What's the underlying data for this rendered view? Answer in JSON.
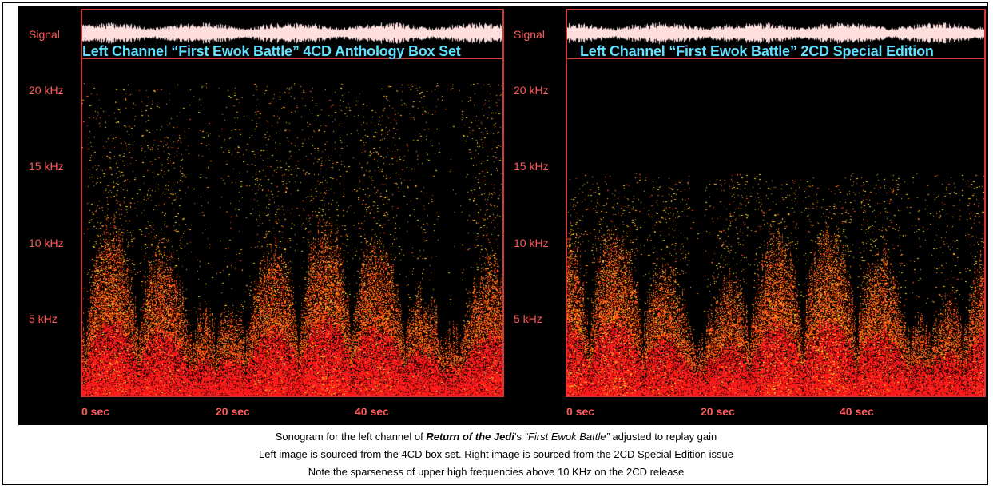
{
  "chart_data": [
    {
      "type": "heatmap",
      "title": "Left Channel “First Ewok Battle” 4CD Anthology Box Set",
      "signal_label": "Signal",
      "ylabel": "",
      "xlabel": "",
      "y_ticks": [
        "20 kHz",
        "15 kHz",
        "10 kHz",
        "5 kHz"
      ],
      "y_tick_values": [
        20000,
        15000,
        10000,
        5000
      ],
      "ylim": [
        0,
        22050
      ],
      "x_ticks": [
        "0 sec",
        "20 sec",
        "40 sec"
      ],
      "x_tick_values": [
        0,
        20,
        40
      ],
      "xlim": [
        0,
        60
      ],
      "colors": {
        "low": "#ff1a1a",
        "mid": "#ff8a1a",
        "high": "#ffd21a",
        "frame": "#d23a3a",
        "title": "#5fe0ff"
      }
    },
    {
      "type": "heatmap",
      "title": "Left Channel “First Ewok Battle” 2CD Special Edition",
      "signal_label": "Signal",
      "ylabel": "",
      "xlabel": "",
      "y_ticks": [
        "20 kHz",
        "15 kHz",
        "10 kHz",
        "5 kHz"
      ],
      "y_tick_values": [
        20000,
        15000,
        10000,
        5000
      ],
      "ylim": [
        0,
        22050
      ],
      "x_ticks": [
        "0 sec",
        "20 sec",
        "40 sec"
      ],
      "x_tick_values": [
        0,
        20,
        40
      ],
      "xlim": [
        0,
        60
      ],
      "colors": {
        "low": "#ff1a1a",
        "mid": "#ff8a1a",
        "high": "#ffd21a",
        "frame": "#d23a3a",
        "title": "#5fe0ff"
      }
    }
  ],
  "caption": {
    "line1_prefix": "Sonogram for the left channel of ",
    "line1_album": "Return of the Jedi",
    "line1_possessive": "’s ",
    "line1_track": "“First Ewok Battle”",
    "line1_suffix": " adjusted to replay gain",
    "line2": "Left image is sourced from the 4CD box set. Right image is sourced from the 2CD Special Edition issue",
    "line3": "Note the sparseness of upper high frequencies above 10 KHz on the 2CD release"
  }
}
